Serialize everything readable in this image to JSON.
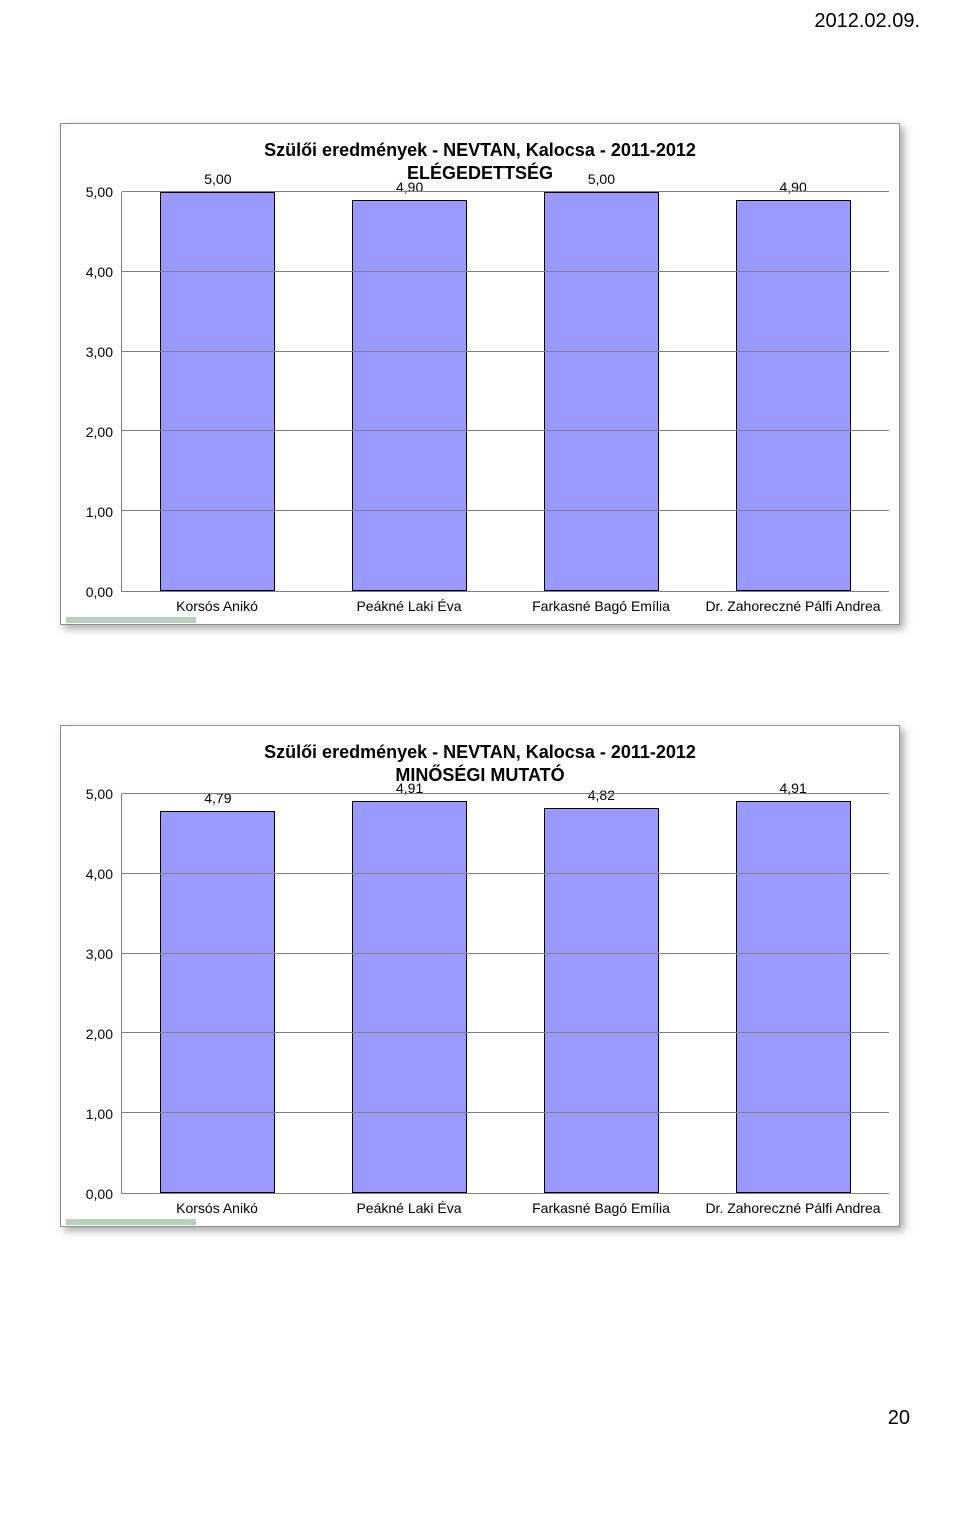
{
  "header_date": "2012.02.09.",
  "page_number": "20",
  "chart1": {
    "type": "bar",
    "title_line1": "Szülői eredmények - NEVTAN, Kalocsa - 2011-2012",
    "title_line2": "ELÉGEDETTSÉG",
    "categories": [
      "Korsós Anikó",
      "Peákné Laki Éva",
      "Farkasné Bagó Emília",
      "Dr. Zahoreczné Pálfi Andrea"
    ],
    "values": [
      5.0,
      4.9,
      5.0,
      4.9
    ],
    "value_labels": [
      "5,00",
      "4,90",
      "5,00",
      "4,90"
    ],
    "y_ticks": [
      0,
      1,
      2,
      3,
      4,
      5
    ],
    "y_tick_labels": [
      "0,00",
      "1,00",
      "2,00",
      "3,00",
      "4,00",
      "5,00"
    ],
    "ymax": 5.0,
    "bar_color": "#9999ff",
    "grid_color": "#808080",
    "background_color": "#ffffff",
    "label_fontsize": 14,
    "title_fontsize": 18
  },
  "chart2": {
    "type": "bar",
    "title_line1": "Szülői eredmények - NEVTAN, Kalocsa - 2011-2012",
    "title_line2": "MINŐSÉGI MUTATÓ",
    "categories": [
      "Korsós Anikó",
      "Peákné Laki Éva",
      "Farkasné Bagó Emília",
      "Dr. Zahoreczné Pálfi Andrea"
    ],
    "values": [
      4.79,
      4.91,
      4.82,
      4.91
    ],
    "value_labels": [
      "4,79",
      "4,91",
      "4,82",
      "4,91"
    ],
    "y_ticks": [
      0,
      1,
      2,
      3,
      4,
      5
    ],
    "y_tick_labels": [
      "0,00",
      "1,00",
      "2,00",
      "3,00",
      "4,00",
      "5,00"
    ],
    "ymax": 5.0,
    "bar_color": "#9999ff",
    "grid_color": "#808080",
    "background_color": "#ffffff",
    "label_fontsize": 14,
    "title_fontsize": 18
  }
}
